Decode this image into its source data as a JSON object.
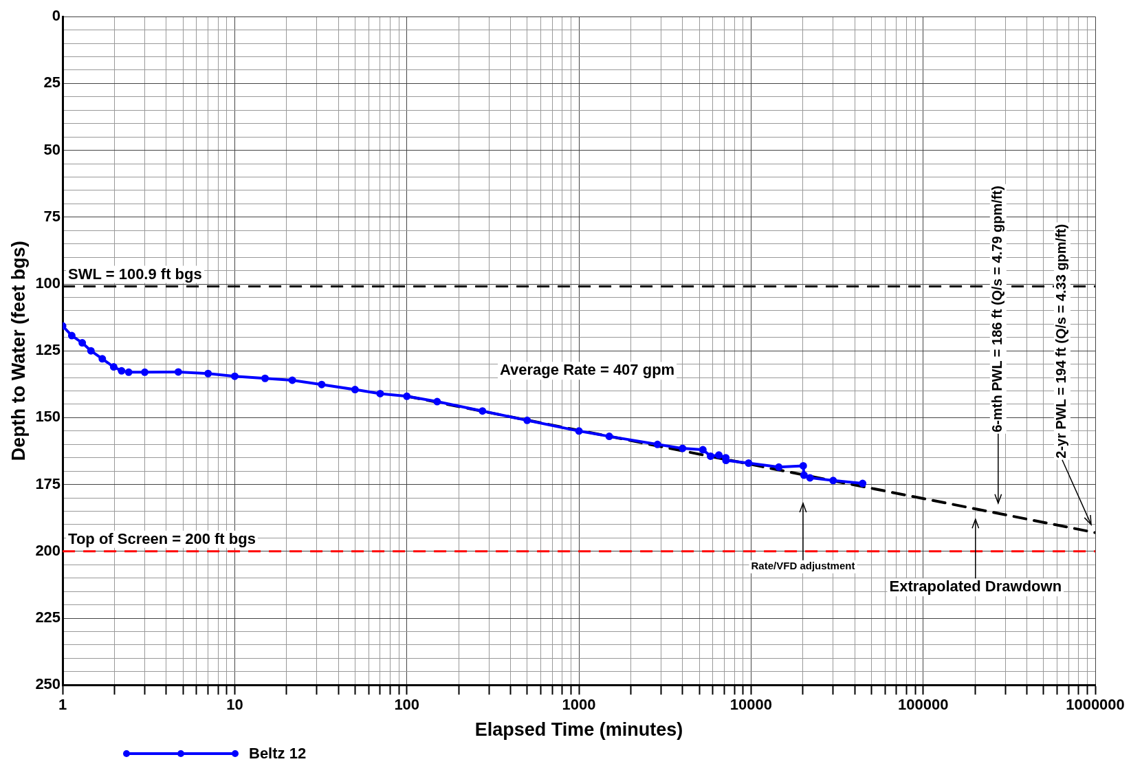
{
  "chart_data": {
    "type": "line",
    "xlabel": "Elapsed Time (minutes)",
    "ylabel": "Depth to Water (feet bgs)",
    "log": "x",
    "grid": true,
    "legend": "bottom left",
    "marker": "circle",
    "xlim": [
      1,
      1000000
    ],
    "xticks": [
      1,
      {
        "value": 2,
        "label": null
      },
      {
        "value": 3,
        "label": null
      },
      {
        "value": 4,
        "label": null
      },
      {
        "value": 5,
        "label": null
      },
      {
        "value": 6,
        "label": null
      },
      {
        "value": 7,
        "label": null
      },
      {
        "value": 8,
        "label": null
      },
      {
        "value": 9,
        "label": null
      },
      10,
      {
        "value": 20,
        "label": null
      },
      {
        "value": 30,
        "label": null
      },
      {
        "value": 40,
        "label": null
      },
      {
        "value": 50,
        "label": null
      },
      {
        "value": 60,
        "label": null
      },
      {
        "value": 70,
        "label": null
      },
      {
        "value": 80,
        "label": null
      },
      {
        "value": 90,
        "label": null
      },
      100,
      {
        "value": 200,
        "label": null
      },
      {
        "value": 300,
        "label": null
      },
      {
        "value": 400,
        "label": null
      },
      {
        "value": 500,
        "label": null
      },
      {
        "value": 600,
        "label": null
      },
      {
        "value": 700,
        "label": null
      },
      {
        "value": 800,
        "label": null
      },
      {
        "value": 900,
        "label": null
      },
      1000,
      {
        "value": 2000,
        "label": null
      },
      {
        "value": 3000,
        "label": null
      },
      {
        "value": 4000,
        "label": null
      },
      {
        "value": 5000,
        "label": null
      },
      {
        "value": 6000,
        "label": null
      },
      {
        "value": 7000,
        "label": null
      },
      {
        "value": 8000,
        "label": null
      },
      {
        "value": 9000,
        "label": null
      },
      10000,
      {
        "value": 20000,
        "label": null
      },
      {
        "value": 30000,
        "label": null
      },
      {
        "value": 40000,
        "label": null
      },
      {
        "value": 50000,
        "label": null
      },
      {
        "value": 60000,
        "label": null
      },
      {
        "value": 70000,
        "label": null
      },
      {
        "value": 80000,
        "label": null
      },
      {
        "value": 90000,
        "label": null
      },
      100000,
      {
        "value": 200000,
        "label": null
      },
      {
        "value": 300000,
        "label": null
      },
      {
        "value": 400000,
        "label": null
      },
      {
        "value": 500000,
        "label": null
      },
      {
        "value": 600000,
        "label": null
      },
      {
        "value": 700000,
        "label": null
      },
      {
        "value": 800000,
        "label": null
      },
      {
        "value": 900000,
        "label": null
      },
      1000000
    ],
    "ylim": [
      250,
      0
    ],
    "yticks": [
      0,
      {
        "value": 5,
        "label": null
      },
      {
        "value": 10,
        "label": null
      },
      {
        "value": 15,
        "label": null
      },
      {
        "value": 20,
        "label": null
      },
      25,
      {
        "value": 30,
        "label": null
      },
      {
        "value": 35,
        "label": null
      },
      {
        "value": 40,
        "label": null
      },
      {
        "value": 45,
        "label": null
      },
      50,
      {
        "value": 55,
        "label": null
      },
      {
        "value": 60,
        "label": null
      },
      {
        "value": 65,
        "label": null
      },
      {
        "value": 70,
        "label": null
      },
      75,
      {
        "value": 80,
        "label": null
      },
      {
        "value": 85,
        "label": null
      },
      {
        "value": 90,
        "label": null
      },
      {
        "value": 95,
        "label": null
      },
      100,
      {
        "value": 105,
        "label": null
      },
      {
        "value": 110,
        "label": null
      },
      {
        "value": 115,
        "label": null
      },
      {
        "value": 120,
        "label": null
      },
      125,
      {
        "value": 130,
        "label": null
      },
      {
        "value": 135,
        "label": null
      },
      {
        "value": 140,
        "label": null
      },
      {
        "value": 145,
        "label": null
      },
      150,
      {
        "value": 155,
        "label": null
      },
      {
        "value": 160,
        "label": null
      },
      {
        "value": 165,
        "label": null
      },
      {
        "value": 170,
        "label": null
      },
      175,
      {
        "value": 180,
        "label": null
      },
      {
        "value": 185,
        "label": null
      },
      {
        "value": 190,
        "label": null
      },
      {
        "value": 195,
        "label": null
      },
      200,
      {
        "value": 205,
        "label": null
      },
      {
        "value": 210,
        "label": null
      },
      {
        "value": 215,
        "label": null
      },
      {
        "value": 220,
        "label": null
      },
      225,
      {
        "value": 230,
        "label": null
      },
      {
        "value": 235,
        "label": null
      },
      {
        "value": 240,
        "label": null
      },
      {
        "value": 245,
        "label": null
      },
      250
    ],
    "series": [
      {
        "name": "Beltz 12",
        "color": "#0000ff",
        "x": [
          1,
          1.13,
          1.3,
          1.46,
          1.7,
          1.98,
          2.2,
          2.42,
          3,
          4.7,
          7,
          10,
          15,
          21.6,
          32,
          50,
          70,
          100,
          150,
          275,
          500,
          1000,
          1500,
          2860,
          4000,
          5250,
          5820,
          6500,
          7130,
          7150,
          9680,
          14500,
          20100,
          20300,
          22000,
          30000,
          44500
        ],
        "values": [
          115.7,
          119.3,
          122,
          125,
          128,
          131,
          132.5,
          133,
          133,
          132.9,
          133.5,
          134.5,
          135.3,
          136,
          137.6,
          139.5,
          141,
          142,
          144,
          147.5,
          151,
          155,
          157,
          160,
          161.5,
          162,
          164.4,
          164,
          165,
          166,
          167,
          168.5,
          168,
          171.5,
          172.5,
          173.5,
          174.6
        ]
      },
      {
        "type": "line",
        "color": "#000000",
        "line_style": "dashed",
        "marker": "none",
        "x": [
          100,
          1000000
        ],
        "values": [
          142,
          193
        ]
      }
    ],
    "ref_lines": [
      {
        "axis": "y",
        "value": 100.9,
        "label": "SWL = 100.9 ft bgs",
        "color": "#000000",
        "line_style": "dashed"
      },
      {
        "axis": "y",
        "value": 200,
        "label": "Top of Screen = 200 ft bgs",
        "color": "#ff0000",
        "line_style": "dashed"
      }
    ],
    "annotations": [
      "Average Rate = 407 gpm",
      "Rate/VFD adjustment",
      "Extrapolated Drawdown",
      "6-mth PWL = 186 ft (Q/s = 4.79 gpm/ft)",
      "2-yr PWL = 194 ft (Q/s = 4.33 gpm/ft)"
    ]
  }
}
